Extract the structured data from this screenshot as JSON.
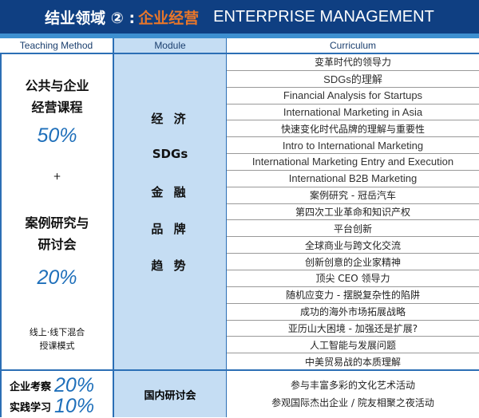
{
  "title": {
    "prefix": "结业领域 ② :",
    "highlight": "企业经营",
    "english": "ENTERPRISE MANAGEMENT"
  },
  "headers": {
    "method": "Teaching Method",
    "module": "Module",
    "curriculum": "Curriculum"
  },
  "method": {
    "course_line1": "公共与企业",
    "course_line2": "经营课程",
    "course_pct": "50%",
    "plus": "+",
    "case_line1": "案例研究与",
    "case_line2": "研讨会",
    "case_pct": "20%",
    "mixed_line1": "线上·线下混合",
    "mixed_line2": "授课模式"
  },
  "modules": [
    "经 济",
    "SDGs",
    "金 融",
    "品 牌",
    "趋 势"
  ],
  "curriculum": [
    "变革时代的领导力",
    "SDGs的理解",
    "Financial Analysis for Startups",
    "International Marketing in Asia",
    "快速变化时代品牌的理解与重要性",
    "Intro to International Marketing",
    "International Marketing Entry and Execution",
    "International B2B Marketing",
    "案例研究 - 冠岳汽车",
    "第四次工业革命和知识产权",
    "平台创新",
    "全球商业与跨文化交流",
    "创新创意的企业家精神",
    "顶尖 CEO 领导力",
    "随机应变力 - 摆脱复杂性的陷阱",
    "成功的海外市场拓展战略",
    "亚历山大困境 - 加强还是扩展?",
    "人工智能与发展问题",
    "中美贸易战的本质理解"
  ],
  "bottom": {
    "visit_label": "企业考察",
    "visit_pct": "20%",
    "practice_label": "实践学习",
    "practice_pct": "10%",
    "module": "国内研讨会",
    "items": [
      "参与丰富多彩的文化艺术活动",
      "参观国际杰出企业 / 院友相聚之夜活动"
    ]
  }
}
